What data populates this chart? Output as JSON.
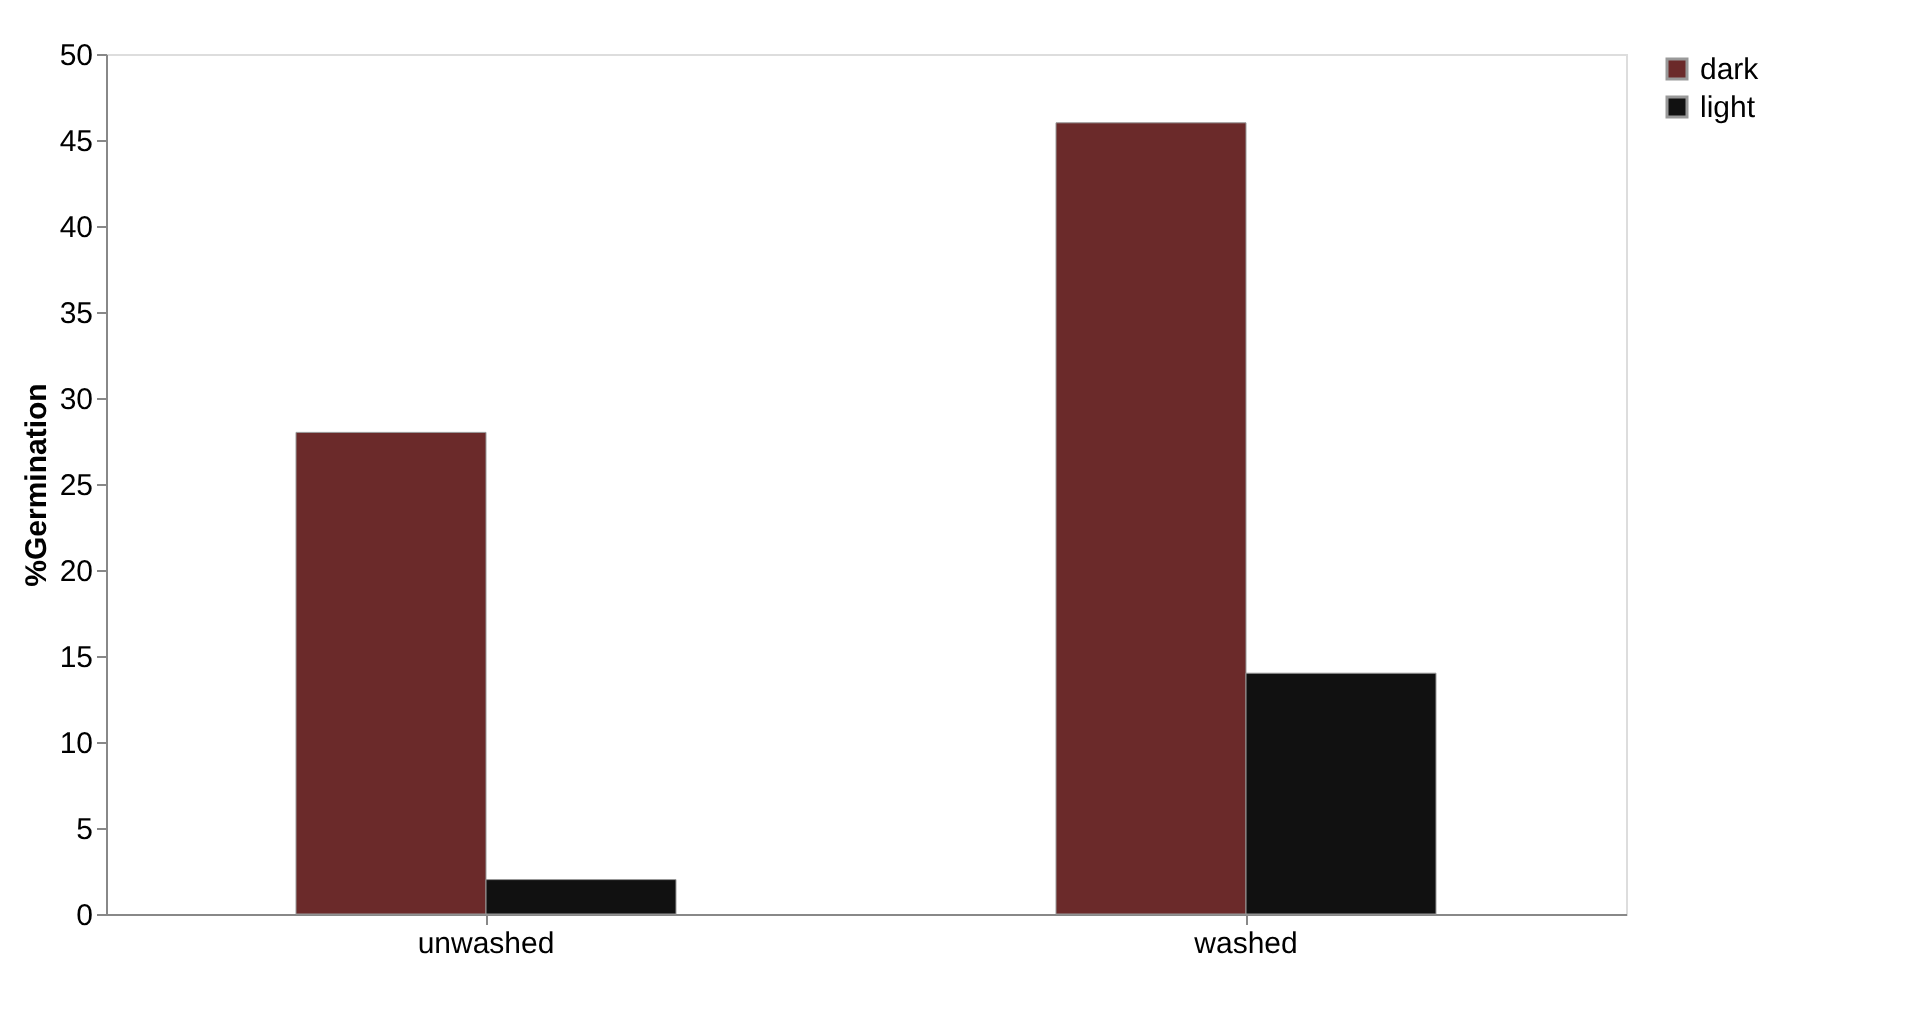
{
  "chart_data": {
    "type": "bar",
    "ylabel": "%Germination",
    "categories": [
      "unwashed",
      "washed"
    ],
    "series": [
      {
        "name": "dark",
        "color": "#6b2a2a",
        "values": [
          28,
          46
        ]
      },
      {
        "name": "light",
        "color": "#111111",
        "values": [
          2,
          14
        ]
      }
    ],
    "ylim": [
      0,
      50
    ],
    "yticks": [
      0,
      5,
      10,
      15,
      20,
      25,
      30,
      35,
      40,
      45,
      50
    ],
    "grid": false,
    "legend": "right"
  }
}
